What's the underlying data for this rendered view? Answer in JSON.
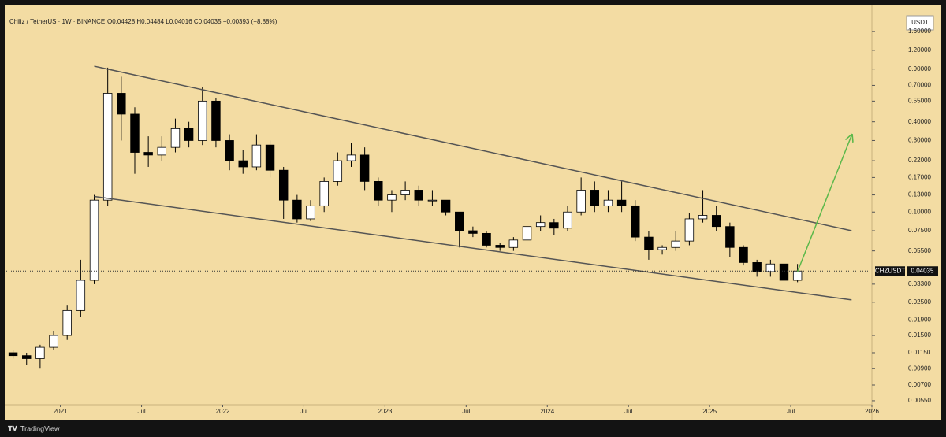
{
  "chart_data": {
    "type": "candlestick",
    "title": "Chiliz / TetherUS · 1W · BINANCE",
    "subtitle": "O0.04428 H0.04484 L0.04016 C0.04035 −0.00393 (−8.88%)",
    "currency": "USDT",
    "brand": "TradingView",
    "log_scale": true,
    "up_color": "#ffffff",
    "down_color": "#000000",
    "x": [
      "2020-09",
      "2020-10",
      "2020-11",
      "2020-12",
      "2021-01",
      "2021-02",
      "2021-03",
      "2021-04",
      "2021-05",
      "2021-06",
      "2021-07",
      "2021-08",
      "2021-09",
      "2021-10",
      "2021-11",
      "2021-12",
      "2022-01",
      "2022-02",
      "2022-03",
      "2022-04",
      "2022-05",
      "2022-06",
      "2022-07",
      "2022-08",
      "2022-09",
      "2022-10",
      "2022-11",
      "2022-12",
      "2023-01",
      "2023-02",
      "2023-03",
      "2023-04",
      "2023-05",
      "2023-06",
      "2023-07",
      "2023-08",
      "2023-09",
      "2023-10",
      "2023-11",
      "2023-12",
      "2024-01",
      "2024-02",
      "2024-03",
      "2024-04",
      "2024-05",
      "2024-06",
      "2024-07",
      "2024-08",
      "2024-09",
      "2024-10",
      "2024-11",
      "2024-12",
      "2025-01",
      "2025-02",
      "2025-03",
      "2025-04",
      "2025-05",
      "2025-06",
      "2025-07"
    ],
    "open": [
      0.0115,
      0.011,
      0.0105,
      0.0125,
      0.015,
      0.022,
      0.035,
      0.12,
      0.62,
      0.45,
      0.25,
      0.24,
      0.27,
      0.36,
      0.3,
      0.55,
      0.3,
      0.22,
      0.2,
      0.28,
      0.19,
      0.12,
      0.09,
      0.11,
      0.16,
      0.22,
      0.24,
      0.16,
      0.12,
      0.13,
      0.14,
      0.12,
      0.12,
      0.1,
      0.075,
      0.072,
      0.06,
      0.058,
      0.065,
      0.08,
      0.085,
      0.078,
      0.1,
      0.14,
      0.11,
      0.12,
      0.11,
      0.068,
      0.056,
      0.058,
      0.064,
      0.09,
      0.095,
      0.08,
      0.058,
      0.046,
      0.04,
      0.045,
      0.035
    ],
    "high": [
      0.012,
      0.0115,
      0.013,
      0.016,
      0.024,
      0.048,
      0.13,
      0.92,
      0.8,
      0.5,
      0.32,
      0.32,
      0.42,
      0.4,
      0.68,
      0.58,
      0.33,
      0.26,
      0.33,
      0.3,
      0.2,
      0.13,
      0.12,
      0.17,
      0.25,
      0.29,
      0.27,
      0.17,
      0.14,
      0.16,
      0.15,
      0.14,
      0.12,
      0.1,
      0.08,
      0.074,
      0.062,
      0.068,
      0.085,
      0.095,
      0.09,
      0.11,
      0.17,
      0.16,
      0.14,
      0.16,
      0.12,
      0.075,
      0.06,
      0.075,
      0.098,
      0.14,
      0.11,
      0.085,
      0.06,
      0.048,
      0.048,
      0.046,
      0.045
    ],
    "low": [
      0.0105,
      0.0095,
      0.009,
      0.012,
      0.014,
      0.02,
      0.033,
      0.11,
      0.3,
      0.18,
      0.2,
      0.22,
      0.25,
      0.27,
      0.28,
      0.27,
      0.19,
      0.18,
      0.19,
      0.17,
      0.09,
      0.085,
      0.087,
      0.1,
      0.15,
      0.2,
      0.14,
      0.11,
      0.1,
      0.12,
      0.11,
      0.11,
      0.095,
      0.058,
      0.068,
      0.058,
      0.055,
      0.055,
      0.063,
      0.075,
      0.07,
      0.075,
      0.095,
      0.1,
      0.1,
      0.1,
      0.064,
      0.048,
      0.052,
      0.055,
      0.06,
      0.085,
      0.075,
      0.05,
      0.044,
      0.037,
      0.037,
      0.031,
      0.034
    ],
    "close": [
      0.011,
      0.0105,
      0.0125,
      0.015,
      0.022,
      0.035,
      0.12,
      0.62,
      0.45,
      0.25,
      0.24,
      0.27,
      0.36,
      0.3,
      0.55,
      0.3,
      0.22,
      0.2,
      0.28,
      0.19,
      0.12,
      0.09,
      0.11,
      0.16,
      0.22,
      0.24,
      0.16,
      0.12,
      0.13,
      0.14,
      0.12,
      0.12,
      0.1,
      0.075,
      0.072,
      0.06,
      0.058,
      0.065,
      0.08,
      0.085,
      0.078,
      0.1,
      0.14,
      0.11,
      0.12,
      0.11,
      0.068,
      0.056,
      0.058,
      0.064,
      0.09,
      0.095,
      0.08,
      0.058,
      0.046,
      0.04,
      0.045,
      0.035,
      0.04035
    ],
    "xlim": [
      "2020-09",
      "2026-01"
    ],
    "xticks": [
      {
        "value": "2021-01",
        "label": "2021"
      },
      {
        "value": "2021-07",
        "label": "Jul"
      },
      {
        "value": "2022-01",
        "label": "2022"
      },
      {
        "value": "2022-07",
        "label": "Jul"
      },
      {
        "value": "2023-01",
        "label": "2023"
      },
      {
        "value": "2023-07",
        "label": "Jul"
      },
      {
        "value": "2024-01",
        "label": "2024"
      },
      {
        "value": "2024-07",
        "label": "Jul"
      },
      {
        "value": "2025-01",
        "label": "2025"
      },
      {
        "value": "2025-07",
        "label": "Jul"
      },
      {
        "value": "2026-01",
        "label": "2026"
      }
    ],
    "ylim": [
      0.0053,
      2.36
    ],
    "yticks": [
      {
        "value": 1.6,
        "label": "1.60000"
      },
      {
        "value": 1.2,
        "label": "1.20000"
      },
      {
        "value": 0.9,
        "label": "0.90000"
      },
      {
        "value": 0.7,
        "label": "0.70000"
      },
      {
        "value": 0.55,
        "label": "0.55000"
      },
      {
        "value": 0.4,
        "label": "0.40000"
      },
      {
        "value": 0.3,
        "label": "0.30000"
      },
      {
        "value": 0.22,
        "label": "0.22000"
      },
      {
        "value": 0.17,
        "label": "0.17000"
      },
      {
        "value": 0.13,
        "label": "0.13000"
      },
      {
        "value": 0.1,
        "label": "0.10000"
      },
      {
        "value": 0.075,
        "label": "0.07500"
      },
      {
        "value": 0.055,
        "label": "0.05500"
      },
      {
        "value": 0.033,
        "label": "0.03300"
      },
      {
        "value": 0.025,
        "label": "0.02500"
      },
      {
        "value": 0.019,
        "label": "0.01900"
      },
      {
        "value": 0.015,
        "label": "0.01500"
      },
      {
        "value": 0.0115,
        "label": "0.01150"
      },
      {
        "value": 0.009,
        "label": "0.00900"
      },
      {
        "value": 0.007,
        "label": "0.00700"
      },
      {
        "value": 0.0055,
        "label": "0.00550"
      }
    ],
    "price_line": {
      "name": "CHZUSDT",
      "value": 0.04035
    },
    "trendlines": [
      {
        "color": "#555555",
        "points": [
          [
            "2021-03",
            0.94
          ],
          [
            "2025-11",
            0.075
          ]
        ]
      },
      {
        "color": "#555555",
        "points": [
          [
            "2021-03",
            0.127
          ],
          [
            "2025-11",
            0.0259
          ]
        ]
      },
      {
        "color": "#5cb84a",
        "arrow": true,
        "points": [
          [
            "2025-07",
            0.04
          ],
          [
            "2025-11",
            0.325
          ]
        ]
      }
    ]
  }
}
